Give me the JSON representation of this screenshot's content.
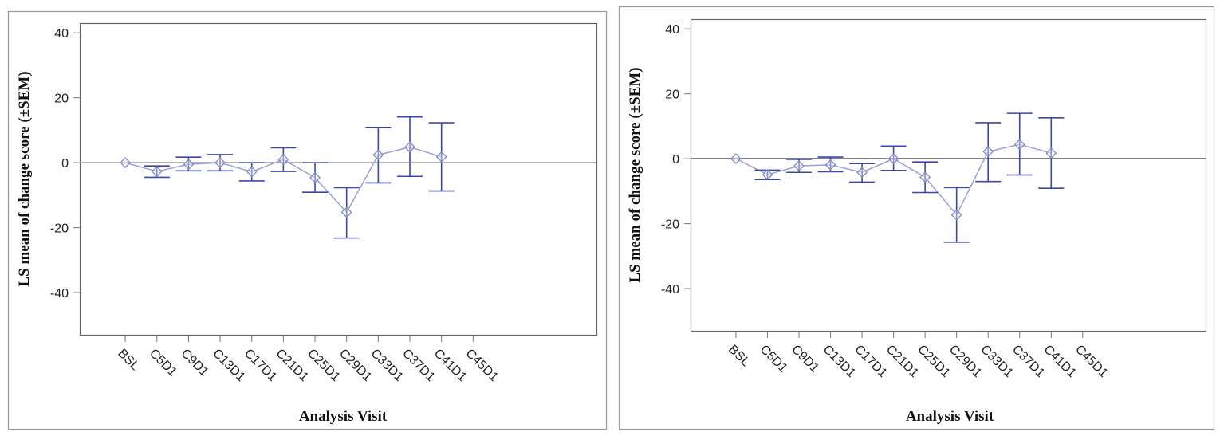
{
  "chart_data": [
    {
      "type": "line",
      "xlabel": "Analysis Visit",
      "ylabel": "LS mean of change score (±SEM)",
      "categories": [
        "BSL",
        "C5D1",
        "C9D1",
        "C13D1",
        "C17D1",
        "C21D1",
        "C25D1",
        "C29D1",
        "C33D1",
        "C37D1",
        "C41D1",
        "C45D1"
      ],
      "yticks": [
        40,
        20,
        0,
        -20,
        -40
      ],
      "ylim": [
        -53,
        43
      ],
      "reference_line": 0,
      "grid": false,
      "series": [
        {
          "marker": "diamond",
          "color": "#5a64c0",
          "errorbar_color": "#3a48a8",
          "values": [
            0,
            -2.7,
            -0.5,
            0,
            -2.8,
            1,
            -4.6,
            -15.3,
            2.4,
            4.8,
            1.8,
            null
          ],
          "upper": [
            null,
            -1,
            1.7,
            2.5,
            0,
            4.6,
            0,
            -7.7,
            10.9,
            14.1,
            12.3,
            null
          ],
          "lower": [
            null,
            -4.5,
            -2.5,
            -2.5,
            -5.6,
            -2.7,
            -9.1,
            -23.2,
            -6.2,
            -4.2,
            -8.7,
            null
          ]
        }
      ]
    },
    {
      "type": "line",
      "xlabel": "Analysis Visit",
      "ylabel": "LS mean of change score (±SEM)",
      "categories": [
        "BSL",
        "C5D1",
        "C9D1",
        "C13D1",
        "C17D1",
        "C21D1",
        "C25D1",
        "C29D1",
        "C33D1",
        "C37D1",
        "C41D1",
        "C45D1"
      ],
      "yticks": [
        40,
        20,
        0,
        -20,
        -40
      ],
      "ylim": [
        -53,
        43
      ],
      "reference_line": 0,
      "grid": false,
      "series": [
        {
          "marker": "diamond",
          "color": "#5a64c0",
          "errorbar_color": "#3a48a8",
          "values": [
            0,
            -4.9,
            -2.2,
            -1.9,
            -4.2,
            0,
            -5.7,
            -17.3,
            2.2,
            4.4,
            1.7,
            null
          ],
          "upper": [
            null,
            -3.5,
            -0.2,
            0.5,
            -1.5,
            3.9,
            -1,
            -8.9,
            11.1,
            14,
            12.6,
            null
          ],
          "lower": [
            null,
            -6.4,
            -4.2,
            -4,
            -7.2,
            -3.6,
            -10.4,
            -25.7,
            -7,
            -5,
            -9.1,
            null
          ]
        }
      ]
    }
  ]
}
